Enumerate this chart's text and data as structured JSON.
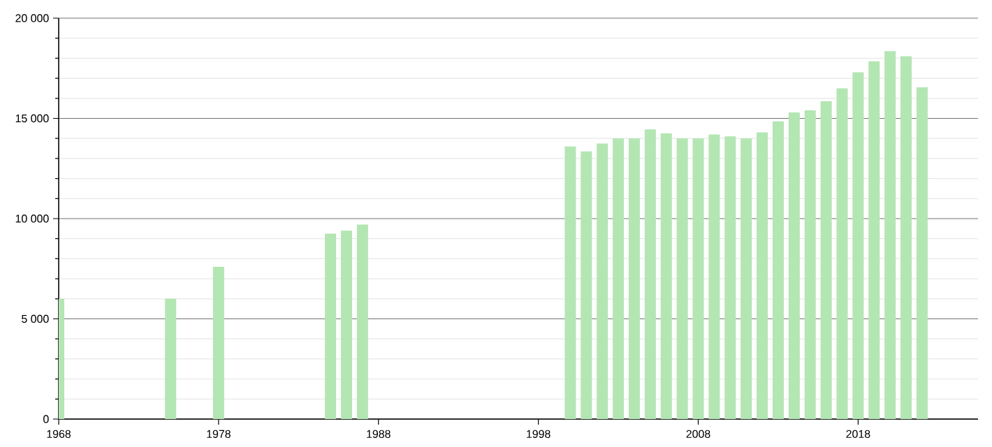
{
  "chart_data": {
    "type": "bar",
    "color": "#b3e6b3",
    "x": [
      1968,
      1975,
      1978,
      1985,
      1986,
      1987,
      2000,
      2001,
      2002,
      2003,
      2004,
      2005,
      2006,
      2007,
      2008,
      2009,
      2010,
      2011,
      2012,
      2013,
      2014,
      2015,
      2016,
      2017,
      2018,
      2019,
      2020,
      2021,
      2022
    ],
    "values": [
      6000,
      6000,
      7600,
      9250,
      9400,
      9700,
      13600,
      13350,
      13750,
      14000,
      14000,
      14450,
      14250,
      14000,
      14000,
      14200,
      14100,
      14000,
      14300,
      14850,
      15300,
      15400,
      15850,
      16500,
      17300,
      17850,
      18350,
      18100,
      16550
    ],
    "xlim": [
      1968,
      2025.5
    ],
    "xticks": [
      1968,
      1978,
      1988,
      1998,
      2008,
      2018
    ],
    "ylim": [
      0,
      20000
    ],
    "yticks": [
      {
        "value": 0,
        "label": "0"
      },
      {
        "value": 1000,
        "label": null
      },
      {
        "value": 2000,
        "label": null
      },
      {
        "value": 3000,
        "label": null
      },
      {
        "value": 4000,
        "label": null
      },
      {
        "value": 5000,
        "label": "5 000"
      },
      {
        "value": 6000,
        "label": null
      },
      {
        "value": 7000,
        "label": null
      },
      {
        "value": 8000,
        "label": null
      },
      {
        "value": 9000,
        "label": null
      },
      {
        "value": 10000,
        "label": "10 000"
      },
      {
        "value": 11000,
        "label": null
      },
      {
        "value": 12000,
        "label": null
      },
      {
        "value": 13000,
        "label": null
      },
      {
        "value": 14000,
        "label": null
      },
      {
        "value": 15000,
        "label": "15 000"
      },
      {
        "value": 16000,
        "label": null
      },
      {
        "value": 17000,
        "label": null
      },
      {
        "value": 18000,
        "label": null
      },
      {
        "value": 19000,
        "label": null
      },
      {
        "value": 20000,
        "label": "20 000"
      }
    ],
    "grid": "y"
  }
}
